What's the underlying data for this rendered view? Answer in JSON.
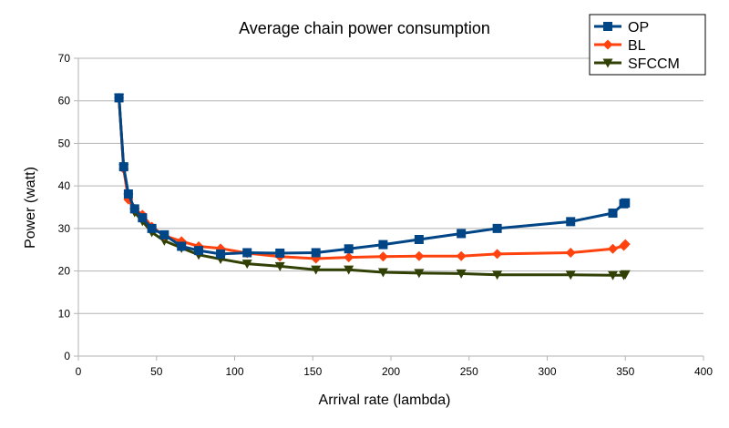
{
  "chart_data": {
    "type": "line",
    "title": "Average chain power consumption",
    "xlabel": "Arrival rate (lambda)",
    "ylabel": "Power (watt)",
    "xlim": [
      0,
      400
    ],
    "ylim": [
      0,
      70
    ],
    "xticks": [
      0,
      50,
      100,
      150,
      200,
      250,
      300,
      350,
      400
    ],
    "yticks": [
      0,
      10,
      20,
      30,
      40,
      50,
      60,
      70
    ],
    "grid": "horizontal",
    "legend_position": "top-right",
    "series": [
      {
        "name": "OP",
        "color": "#004586",
        "marker": "square",
        "points": [
          [
            26,
            60.7
          ],
          [
            29,
            44.5
          ],
          [
            32,
            38.1
          ],
          [
            36,
            34.6
          ],
          [
            41,
            32.5
          ],
          [
            47,
            30.0
          ],
          [
            55,
            28.5
          ],
          [
            66,
            25.8
          ],
          [
            77,
            24.8
          ],
          [
            91,
            24.0
          ],
          [
            108,
            24.3
          ],
          [
            129,
            24.2
          ],
          [
            152,
            24.3
          ],
          [
            173,
            25.2
          ],
          [
            195,
            26.2
          ],
          [
            218,
            27.4
          ],
          [
            245,
            28.8
          ],
          [
            268,
            30.0
          ],
          [
            315,
            31.6
          ],
          [
            342,
            33.6
          ],
          [
            349,
            35.8
          ],
          [
            350,
            36.0
          ]
        ]
      },
      {
        "name": "BL",
        "color": "#ff420e",
        "marker": "diamond",
        "points": [
          [
            26,
            60.7
          ],
          [
            29,
            44.0
          ],
          [
            32,
            36.8
          ],
          [
            36,
            34.6
          ],
          [
            41,
            33.2
          ],
          [
            47,
            30.4
          ],
          [
            55,
            28.3
          ],
          [
            66,
            27.0
          ],
          [
            77,
            25.8
          ],
          [
            91,
            25.3
          ],
          [
            108,
            24.2
          ],
          [
            129,
            23.4
          ],
          [
            152,
            22.9
          ],
          [
            173,
            23.2
          ],
          [
            195,
            23.4
          ],
          [
            218,
            23.5
          ],
          [
            245,
            23.5
          ],
          [
            268,
            24.0
          ],
          [
            315,
            24.3
          ],
          [
            342,
            25.2
          ],
          [
            349,
            25.9
          ],
          [
            350,
            26.3
          ]
        ]
      },
      {
        "name": "SFCCM",
        "color": "#314004",
        "marker": "triangle-down",
        "points": [
          [
            26,
            60.7
          ],
          [
            29,
            44.2
          ],
          [
            32,
            37.2
          ],
          [
            36,
            33.8
          ],
          [
            41,
            31.7
          ],
          [
            47,
            29.1
          ],
          [
            55,
            27.1
          ],
          [
            66,
            25.4
          ],
          [
            77,
            23.8
          ],
          [
            91,
            22.8
          ],
          [
            108,
            21.7
          ],
          [
            129,
            21.1
          ],
          [
            152,
            20.3
          ],
          [
            173,
            20.3
          ],
          [
            195,
            19.7
          ],
          [
            218,
            19.5
          ],
          [
            245,
            19.4
          ],
          [
            268,
            19.1
          ],
          [
            315,
            19.1
          ],
          [
            342,
            19.0
          ],
          [
            349,
            19.0
          ],
          [
            350,
            19.2
          ]
        ]
      }
    ]
  }
}
